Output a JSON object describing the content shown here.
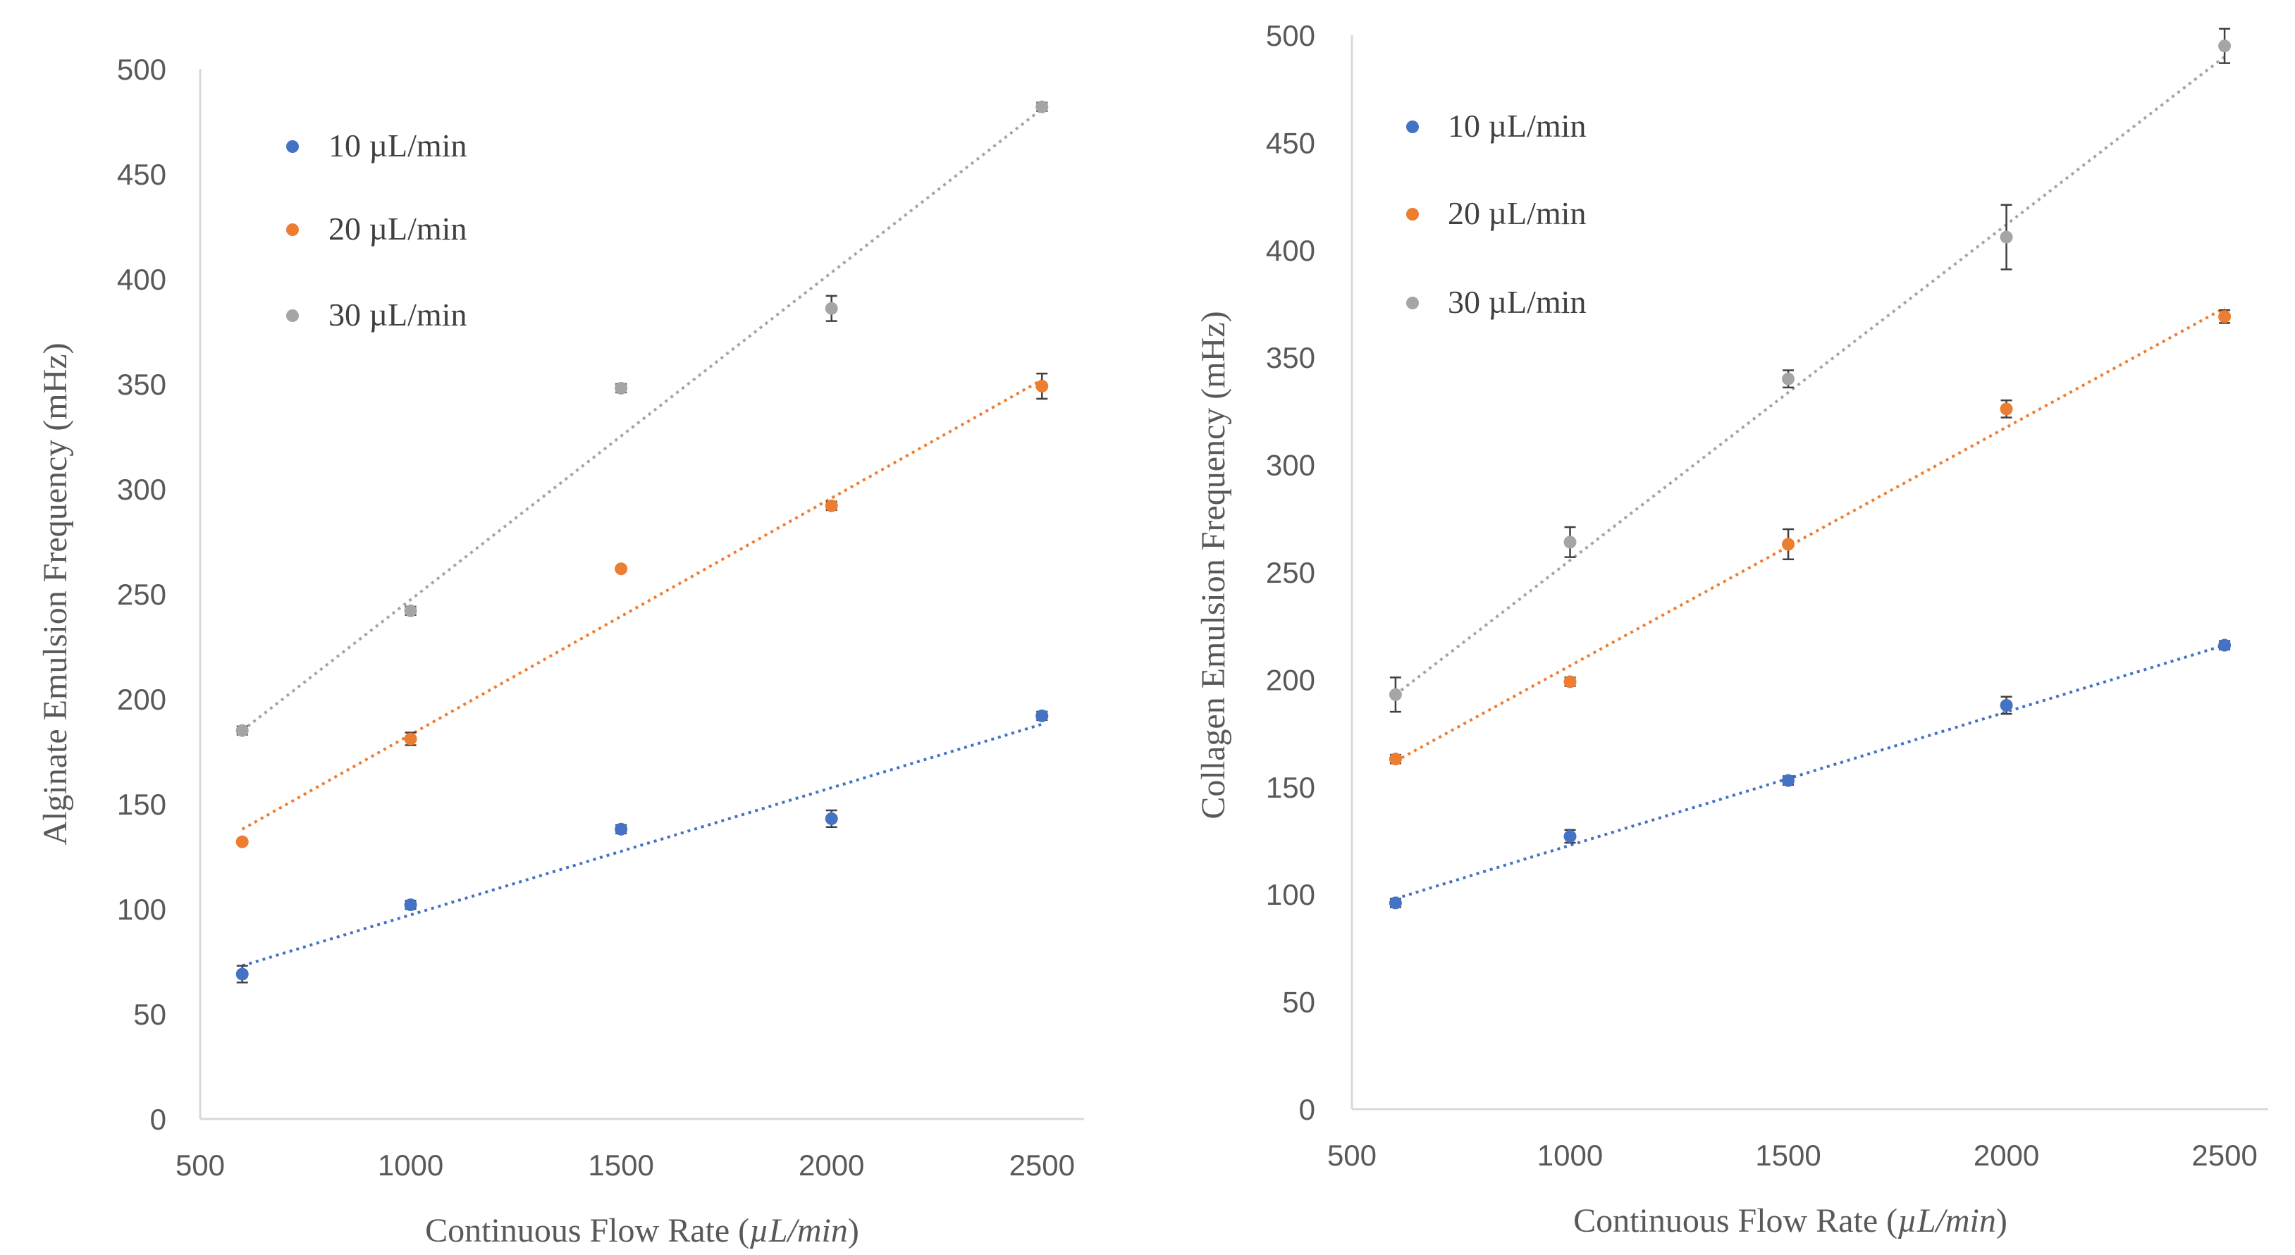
{
  "colors": {
    "s10": "#4472C4",
    "s20": "#ED7D31",
    "s30": "#A5A5A5",
    "axis": "#D9D9D9",
    "errbar": "#404040"
  },
  "chart_data": [
    {
      "type": "scatter",
      "title": "",
      "xlabel_prefix": "Continuous Flow Rate (",
      "xlabel_unit": "µL/min",
      "xlabel_suffix": ")",
      "ylabel": "Alginate Emulsion Frequency (mHz)",
      "xlim": [
        500,
        2600
      ],
      "ylim": [
        0,
        500
      ],
      "xticks": [
        500,
        1000,
        1500,
        2000,
        2500
      ],
      "yticks": [
        0,
        50,
        100,
        150,
        200,
        250,
        300,
        350,
        400,
        450,
        500
      ],
      "legend_position": "top-left",
      "trendline": "linear",
      "series": [
        {
          "name": "10 µL/min",
          "color_key": "s10",
          "x": [
            600,
            1000,
            1500,
            2000,
            2500
          ],
          "y": [
            69,
            102,
            138,
            143,
            192
          ],
          "err": [
            4,
            2,
            2,
            4,
            2
          ],
          "trend": [
            [
              600,
              73
            ],
            [
              2500,
              188
            ]
          ]
        },
        {
          "name": "20 µL/min",
          "color_key": "s20",
          "x": [
            600,
            1000,
            1500,
            2000,
            2500
          ],
          "y": [
            132,
            181,
            262,
            292,
            349
          ],
          "err": [
            1,
            3,
            1,
            2,
            6
          ],
          "trend": [
            [
              600,
              138
            ],
            [
              2500,
              352
            ]
          ]
        },
        {
          "name": "30 µL/min",
          "color_key": "s30",
          "x": [
            600,
            1000,
            1500,
            2000,
            2500
          ],
          "y": [
            185,
            242,
            348,
            386,
            482
          ],
          "err": [
            2,
            2,
            2,
            6,
            2
          ],
          "trend": [
            [
              600,
              185
            ],
            [
              2500,
              481
            ]
          ]
        }
      ]
    },
    {
      "type": "scatter",
      "title": "",
      "xlabel_prefix": "Continuous Flow Rate (",
      "xlabel_unit": "µL/min",
      "xlabel_suffix": ")",
      "ylabel": "Collagen Emulsion Frequency (mHz)",
      "xlim": [
        500,
        2600
      ],
      "ylim": [
        0,
        500
      ],
      "xticks": [
        500,
        1000,
        1500,
        2000,
        2500
      ],
      "yticks": [
        0,
        50,
        100,
        150,
        200,
        250,
        300,
        350,
        400,
        450,
        500
      ],
      "legend_position": "top-left",
      "trendline": "linear",
      "series": [
        {
          "name": "10 µL/min",
          "color_key": "s10",
          "x": [
            600,
            1000,
            1500,
            2000,
            2500
          ],
          "y": [
            96,
            127,
            153,
            188,
            216
          ],
          "err": [
            2,
            3,
            2,
            4,
            2
          ],
          "trend": [
            [
              600,
              98
            ],
            [
              2500,
              216
            ]
          ]
        },
        {
          "name": "20 µL/min",
          "color_key": "s20",
          "x": [
            600,
            1000,
            1500,
            2000,
            2500
          ],
          "y": [
            163,
            199,
            263,
            326,
            369
          ],
          "err": [
            2,
            2,
            7,
            4,
            3
          ],
          "trend": [
            [
              600,
              162
            ],
            [
              2500,
              373
            ]
          ]
        },
        {
          "name": "30 µL/min",
          "color_key": "s30",
          "x": [
            600,
            1000,
            1500,
            2000,
            2500
          ],
          "y": [
            193,
            264,
            340,
            406,
            495
          ],
          "err": [
            8,
            7,
            4,
            15,
            8
          ],
          "trend": [
            [
              600,
              193
            ],
            [
              2500,
              490
            ]
          ]
        }
      ]
    }
  ]
}
